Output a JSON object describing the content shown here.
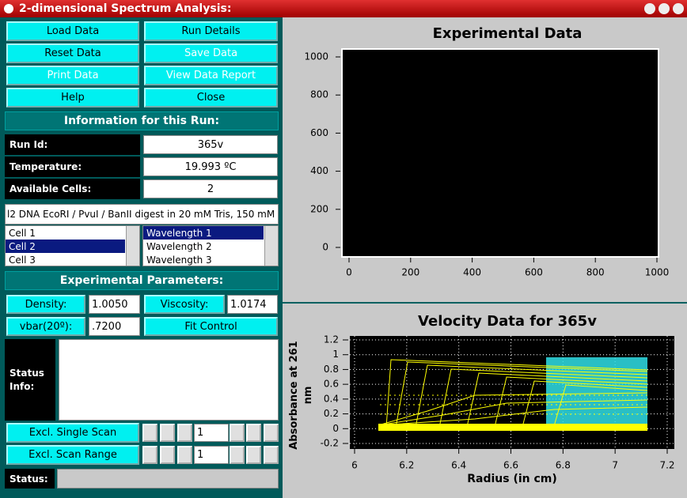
{
  "window": {
    "title": "2-dimensional Spectrum Analysis:"
  },
  "buttons": [
    {
      "label": "Load Data",
      "enabled": true
    },
    {
      "label": "Run Details",
      "enabled": true
    },
    {
      "label": "Reset Data",
      "enabled": true
    },
    {
      "label": "Save Data",
      "enabled": false
    },
    {
      "label": "Print Data",
      "enabled": false
    },
    {
      "label": "View Data Report",
      "enabled": false
    },
    {
      "label": "Help",
      "enabled": true
    },
    {
      "label": "Close",
      "enabled": true
    }
  ],
  "info": {
    "header": "Information for this Run:",
    "rows": [
      {
        "label": "Run Id:",
        "value": "365v"
      },
      {
        "label": "Temperature:",
        "value": "19.993 ºC"
      },
      {
        "label": "Available Cells:",
        "value": "2"
      }
    ],
    "description": "l2 DNA EcoRI / PvuI / BanII digest in 20 mM Tris, 150 mM"
  },
  "cells": {
    "items": [
      "Cell 1",
      "Cell 2",
      "Cell 3"
    ],
    "selected": 1
  },
  "wavelengths": {
    "items": [
      "Wavelength 1",
      "Wavelength 2",
      "Wavelength 3"
    ],
    "selected": 0
  },
  "params": {
    "header": "Experimental Parameters:",
    "density": {
      "label": "Density:",
      "value": "1.0050"
    },
    "viscosity": {
      "label": "Viscosity:",
      "value": "1.0174"
    },
    "vbar": {
      "label": "vbar(20º):",
      "value": ".7200"
    },
    "fit": "Fit Control"
  },
  "status_info": {
    "label": "Status Info:"
  },
  "excl": {
    "single": {
      "label": "Excl. Single Scan",
      "value": "1"
    },
    "range": {
      "label": "Excl. Scan Range",
      "value": "1"
    }
  },
  "status": {
    "label": "Status:"
  },
  "chart_data": [
    {
      "type": "line",
      "title": "Experimental Data",
      "xlim": [
        0,
        1000
      ],
      "ylim": [
        0,
        1000
      ],
      "xticks": [
        0,
        200,
        400,
        600,
        800,
        1000
      ],
      "yticks": [
        0,
        200,
        400,
        600,
        800,
        1000
      ],
      "grid": false
    },
    {
      "type": "line",
      "title": "Velocity Data for 365v",
      "xlabel": "Radius (in cm)",
      "ylabel": "Absorbance at 261 nm",
      "xlim": [
        6,
        7.2
      ],
      "ylim": [
        -0.2,
        1.2
      ],
      "xticks": [
        6,
        6.2,
        6.4,
        6.6,
        6.8,
        7,
        7.2
      ],
      "yticks": [
        -0.2,
        0,
        0.2,
        0.4,
        0.6,
        0.8,
        1,
        1.2
      ],
      "grid": true
    }
  ]
}
